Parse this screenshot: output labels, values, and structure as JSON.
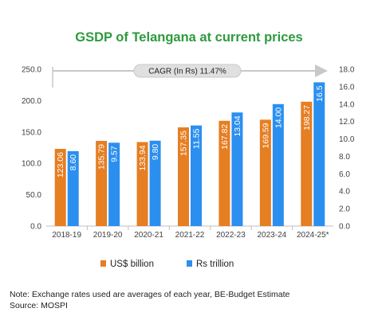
{
  "chart_data": {
    "type": "bar",
    "title": "GSDP of Telangana at current prices",
    "categories": [
      "2018-19",
      "2019-20",
      "2020-21",
      "2021-22",
      "2022-23",
      "2023-24",
      "2024-25*"
    ],
    "series": [
      {
        "name": "US$ billion",
        "axis": "left",
        "color": "#e67e22",
        "values": [
          123.06,
          135.79,
          133.94,
          157.35,
          167.82,
          169.59,
          198.27
        ],
        "labels": [
          "123.06",
          "135.79",
          "133.94",
          "157.35",
          "167.82",
          "169.59",
          "198.27"
        ]
      },
      {
        "name": "Rs trillion",
        "axis": "right",
        "color": "#2b8ff0",
        "values": [
          8.6,
          9.57,
          9.8,
          11.55,
          13.04,
          14.0,
          16.5
        ],
        "labels": [
          "8.60",
          "9.57",
          "9.80",
          "11.55",
          "13.04",
          "14.00",
          "16.5"
        ]
      }
    ],
    "y_left": {
      "min": 0,
      "max": 250,
      "ticks": [
        "0.0",
        "50.0",
        "100.0",
        "150.0",
        "200.0",
        "250.0"
      ]
    },
    "y_right": {
      "min": 0,
      "max": 18,
      "ticks": [
        "0.0",
        "2.0",
        "4.0",
        "6.0",
        "8.0",
        "10.0",
        "12.0",
        "14.0",
        "16.0",
        "18.0"
      ]
    },
    "annotation": "CAGR (In Rs) 11.47%",
    "legend_position": "bottom",
    "grid": false
  },
  "footer": {
    "note": "Note: Exchange rates used are averages of each year, BE-Budget Estimate",
    "source": "Source: MOSPI"
  }
}
